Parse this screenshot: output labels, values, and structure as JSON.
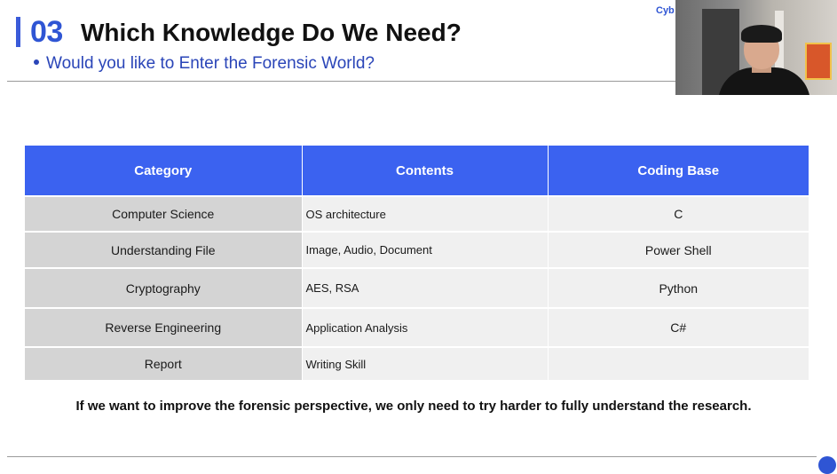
{
  "header": {
    "section_number": "03",
    "title": "Which Knowledge Do We Need?",
    "subtitle": "Would you like to Enter the Forensic World?",
    "corner_label": "Cyb"
  },
  "table": {
    "columns": [
      "Category",
      "Contents",
      "Coding Base"
    ],
    "rows": [
      {
        "category": "Computer Science",
        "contents": "OS architecture",
        "coding_base": "C"
      },
      {
        "category": "Understanding File",
        "contents": "Image, Audio, Document",
        "coding_base": "Power Shell"
      },
      {
        "category": "Cryptography",
        "contents": "AES, RSA",
        "coding_base": "Python"
      },
      {
        "category": "Reverse Engineering",
        "contents": "Application Analysis",
        "coding_base": "C#"
      },
      {
        "category": "Report",
        "contents": "Writing Skill",
        "coding_base": ""
      }
    ]
  },
  "footer": {
    "note": "If we want to improve the forensic perspective, we only need to try harder to fully understand the research."
  },
  "colors": {
    "accent": "#2f55d4",
    "header_row": "#3b62f0",
    "category_cell": "#d4d4d4",
    "content_cell": "#f0f0f0"
  }
}
